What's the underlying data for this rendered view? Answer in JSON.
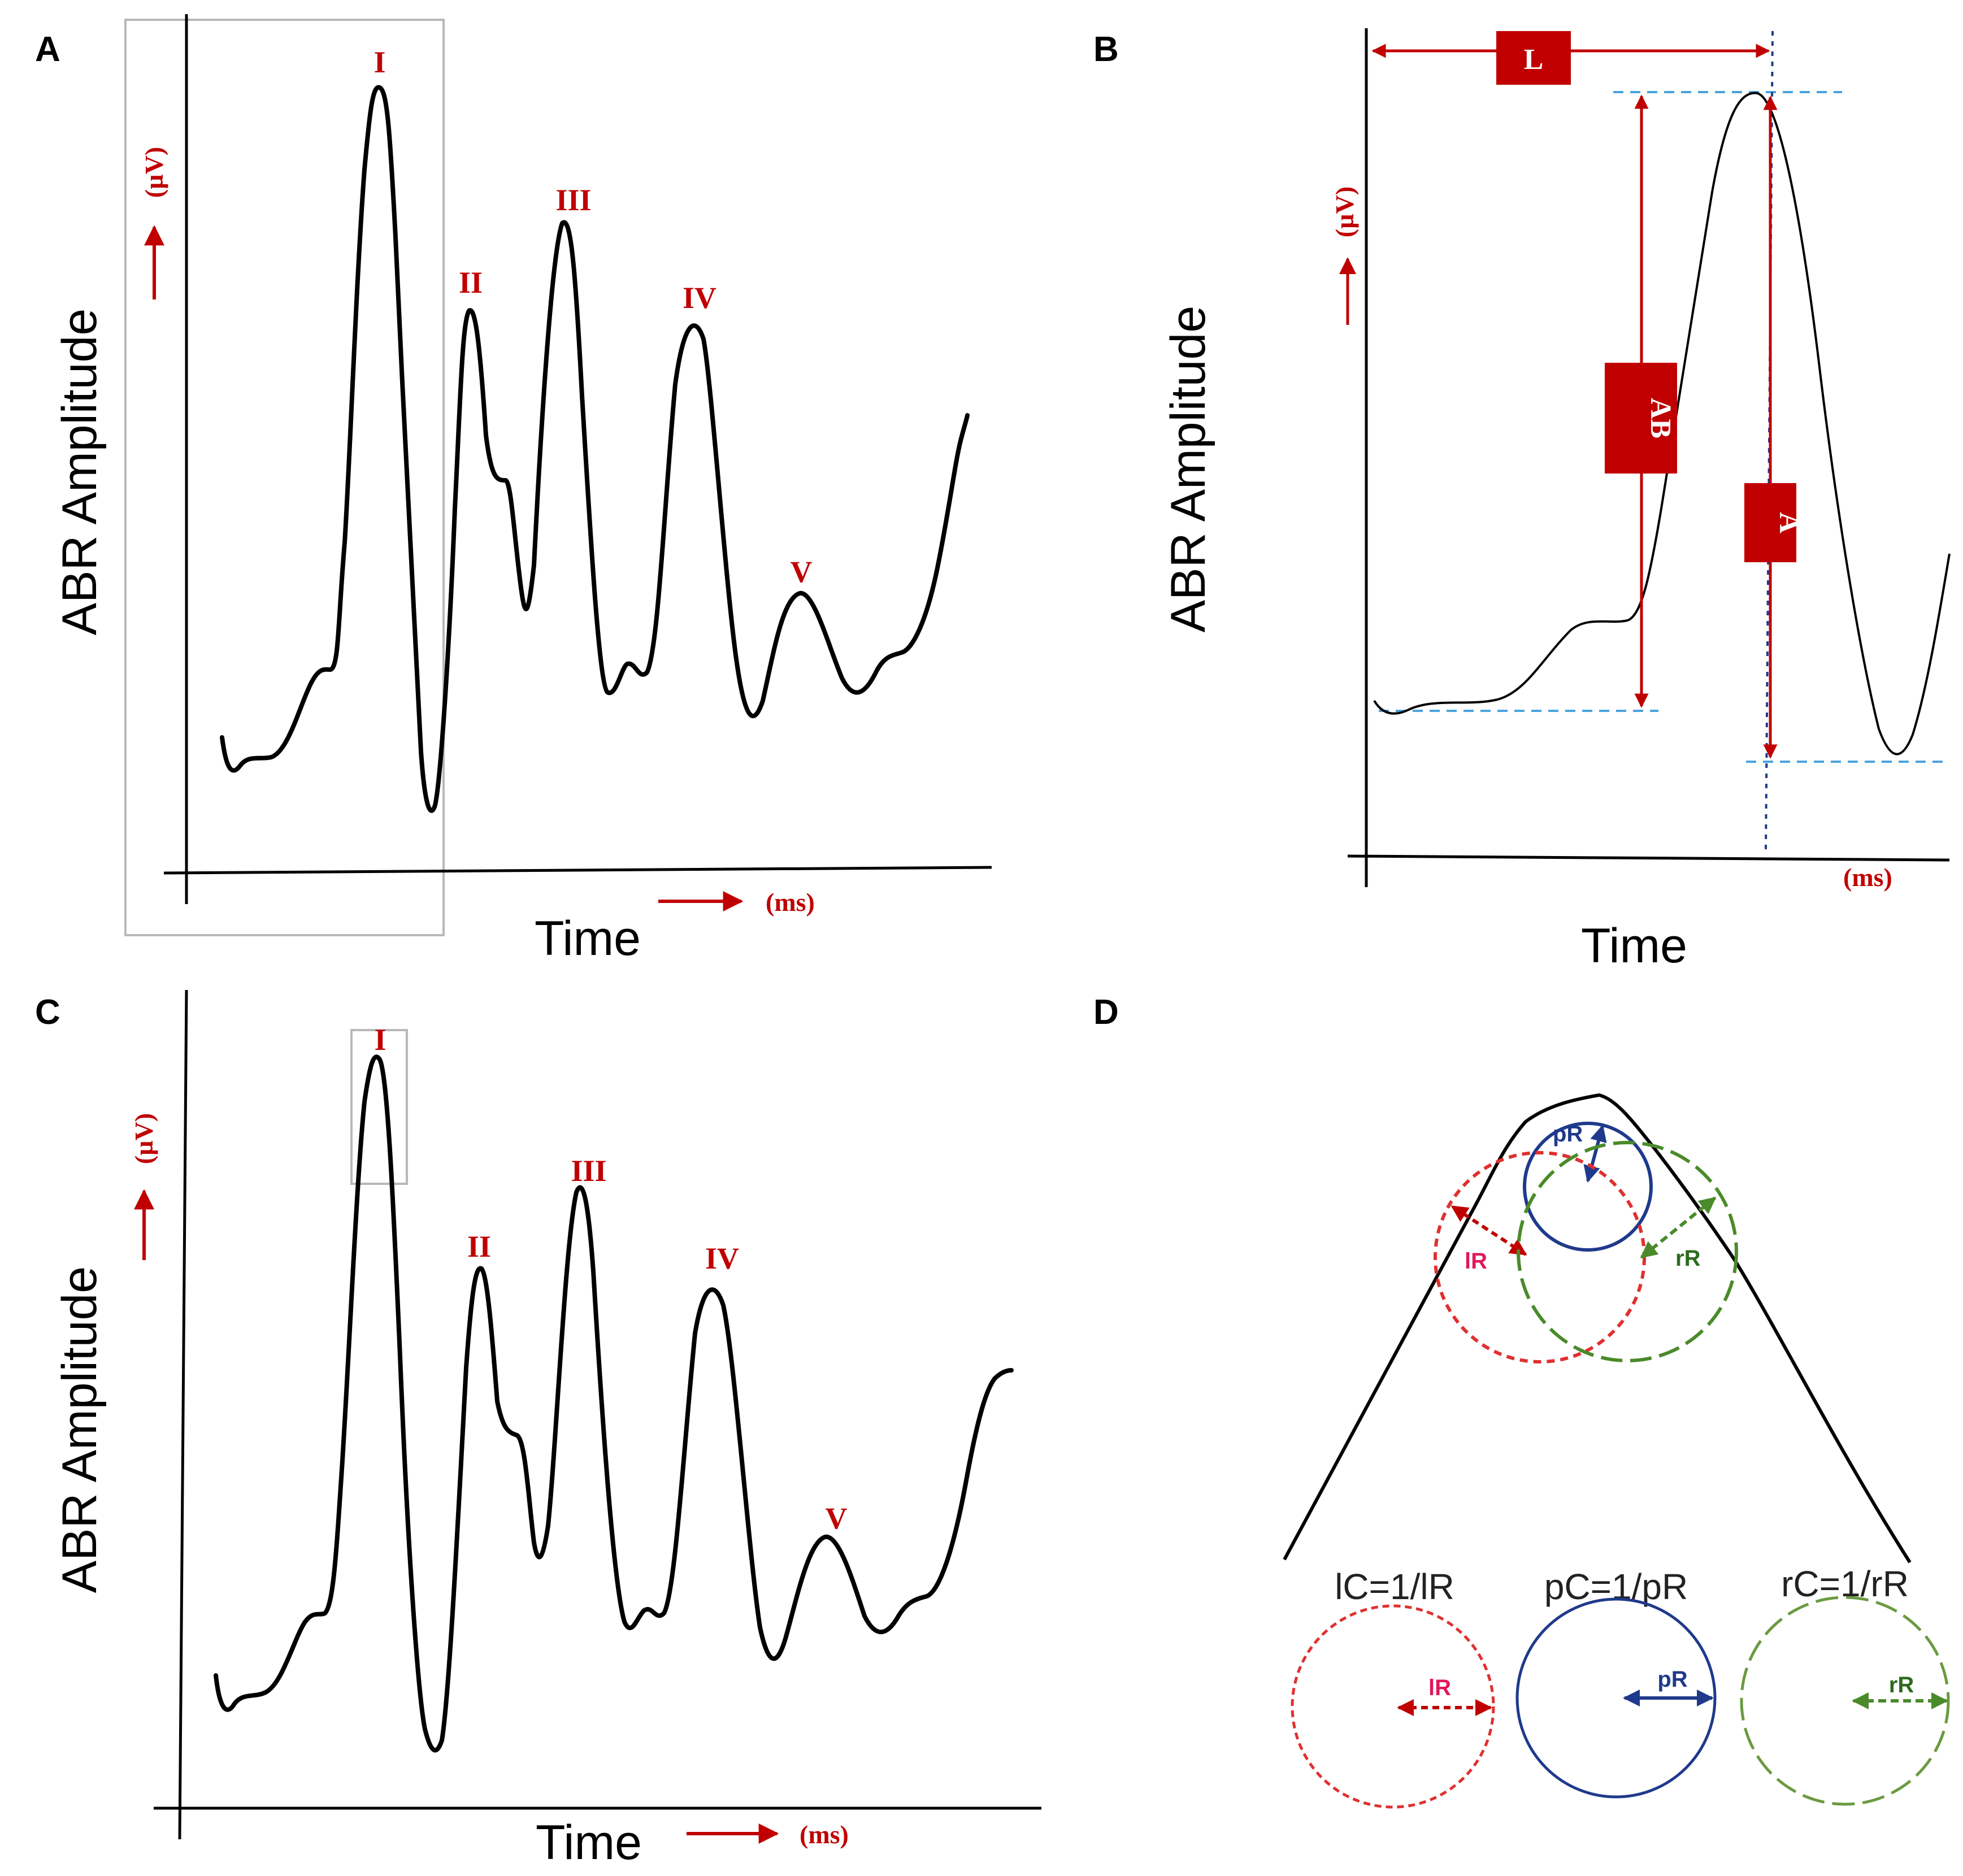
{
  "panels": {
    "A": {
      "letter": "A",
      "ylabel": "ABR Amplitude",
      "xlabel": "Time",
      "y_unit": "(µV)",
      "x_unit": "(ms)",
      "peaks": [
        "I",
        "II",
        "III",
        "IV",
        "V"
      ]
    },
    "B": {
      "letter": "B",
      "ylabel": "ABR Amplitude",
      "xlabel": "Time",
      "y_unit": "(µV)",
      "x_unit": "(ms)",
      "measures": {
        "latency": "L",
        "amplitude_baseline": "AB",
        "amplitude": "A"
      }
    },
    "C": {
      "letter": "C",
      "ylabel": "ABR Amplitude",
      "xlabel": "Time",
      "y_unit": "(µV)",
      "x_unit": "(ms)",
      "peaks": [
        "I",
        "II",
        "III",
        "IV",
        "V"
      ]
    },
    "D": {
      "letter": "D",
      "radii": {
        "l": "lR",
        "p": "pR",
        "r": "rR"
      },
      "formulas": {
        "l": "lC=1/lR",
        "p": "pC=1/pR",
        "r": "rC=1/rR"
      }
    }
  },
  "colors": {
    "red": "#c00000",
    "blue": "#1f3a8c",
    "green": "#4a8a2a",
    "pink": "#e0185a",
    "dashblue": "#4aa3df",
    "gray": "#b8b8b8"
  }
}
